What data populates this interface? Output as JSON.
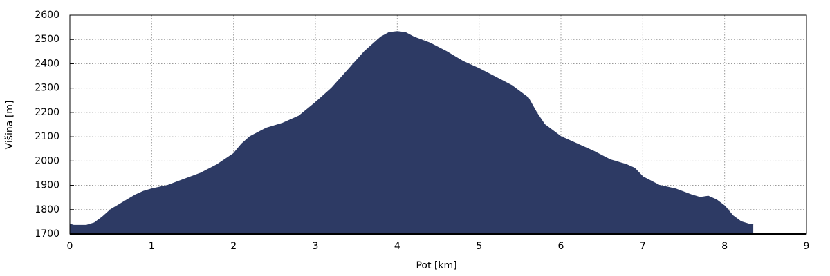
{
  "chart_data": {
    "type": "area",
    "xlabel": "Pot [km]",
    "ylabel": "Višina [m]",
    "x": [
      0,
      0.05,
      0.2,
      0.3,
      0.4,
      0.5,
      0.6,
      0.7,
      0.8,
      0.9,
      1.0,
      1.2,
      1.4,
      1.6,
      1.8,
      2.0,
      2.1,
      2.2,
      2.4,
      2.6,
      2.8,
      3.0,
      3.2,
      3.4,
      3.6,
      3.8,
      3.9,
      4.0,
      4.1,
      4.2,
      4.4,
      4.6,
      4.8,
      5.0,
      5.2,
      5.4,
      5.6,
      5.7,
      5.8,
      6.0,
      6.2,
      6.4,
      6.6,
      6.8,
      6.9,
      7.0,
      7.2,
      7.4,
      7.6,
      7.7,
      7.8,
      7.9,
      8.0,
      8.1,
      8.2,
      8.3,
      8.35
    ],
    "series": [
      {
        "name": "Višina",
        "color": "#2d3a64",
        "values": [
          1740,
          1735,
          1735,
          1745,
          1770,
          1800,
          1820,
          1840,
          1860,
          1875,
          1885,
          1900,
          1925,
          1950,
          1985,
          2030,
          2070,
          2100,
          2135,
          2155,
          2185,
          2240,
          2300,
          2375,
          2450,
          2510,
          2528,
          2532,
          2528,
          2510,
          2485,
          2450,
          2410,
          2380,
          2345,
          2310,
          2260,
          2200,
          2150,
          2100,
          2070,
          2040,
          2005,
          1985,
          1970,
          1935,
          1900,
          1885,
          1860,
          1850,
          1855,
          1840,
          1815,
          1775,
          1750,
          1740,
          1740
        ]
      }
    ],
    "xlim": [
      0,
      9
    ],
    "xticks": [
      0,
      1,
      2,
      3,
      4,
      5,
      6,
      7,
      8,
      9
    ],
    "ylim": [
      1700,
      2600
    ],
    "yticks": [
      1700,
      1800,
      1900,
      2000,
      2100,
      2200,
      2300,
      2400,
      2500,
      2600
    ],
    "grid": true
  }
}
